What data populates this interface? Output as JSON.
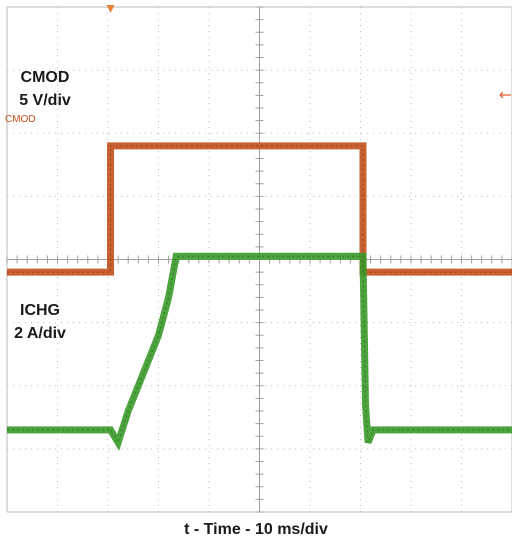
{
  "chart_data": {
    "type": "line",
    "xlabel": "t - Time - 10 ms/div",
    "grid": true,
    "grid_divisions": {
      "x": 10,
      "y": 8
    },
    "x_unit": "ms",
    "x_per_div": 10,
    "xlim": [
      0,
      100
    ],
    "series": [
      {
        "name": "CMOD",
        "label_lines": [
          "CMOD",
          "5 V/div"
        ],
        "channel_marker": "CMOD",
        "color": "#c4501c",
        "x": [
          0,
          20.5,
          20.5,
          70.5,
          70.5,
          100
        ],
        "y": [
          -0.2,
          -0.2,
          1.8,
          1.8,
          -0.2,
          -0.2
        ],
        "y_unit": "div"
      },
      {
        "name": "ICHG",
        "label_lines": [
          "ICHG",
          "2 A/div"
        ],
        "color": "#3a9a2a",
        "x": [
          0,
          20.5,
          22,
          24,
          26,
          28,
          30,
          32,
          33.5,
          70.5,
          71,
          71.5,
          72.5,
          100
        ],
        "y": [
          -2.7,
          -2.7,
          -2.9,
          -2.4,
          -2.0,
          -1.6,
          -1.2,
          -0.6,
          0.05,
          0.05,
          -2.3,
          -2.9,
          -2.7,
          -2.7
        ],
        "y_unit": "div"
      }
    ]
  },
  "markers": {
    "trigger_color": "#e8823a",
    "arrow_color": "#e05a2a"
  }
}
